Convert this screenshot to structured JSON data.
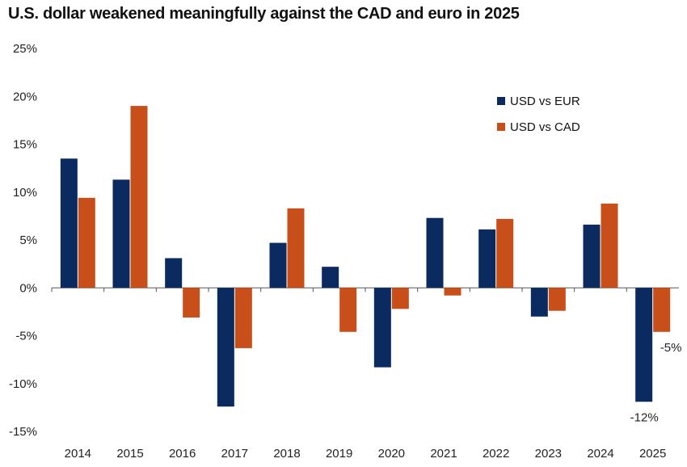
{
  "chart_data": {
    "type": "bar",
    "title": "U.S. dollar weakened meaningfully against the CAD and euro in 2025",
    "xlabel": "",
    "ylabel": "",
    "categories": [
      "2014",
      "2015",
      "2016",
      "2017",
      "2018",
      "2019",
      "2020",
      "2021",
      "2022",
      "2023",
      "2024",
      "2025"
    ],
    "series": [
      {
        "name": "USD vs EUR",
        "color": "#0b2a60",
        "values": [
          13.5,
          11.3,
          3.1,
          -12.4,
          4.7,
          2.2,
          -8.3,
          7.3,
          6.1,
          -3.0,
          6.6,
          -11.9
        ]
      },
      {
        "name": "USD vs CAD",
        "color": "#c94f1a",
        "values": [
          9.4,
          19.0,
          -3.1,
          -6.3,
          8.3,
          -4.6,
          -2.2,
          -0.8,
          7.2,
          -2.4,
          8.8,
          -4.6
        ]
      }
    ],
    "ylim": [
      -15,
      25
    ],
    "yticks": [
      25,
      20,
      15,
      10,
      5,
      0,
      -5,
      -10,
      -15
    ],
    "ytick_format": "percent",
    "grid": false,
    "legend": "top-right",
    "annotations": [
      {
        "category": "2025",
        "series": "USD vs EUR",
        "text": "-12%"
      },
      {
        "category": "2025",
        "series": "USD vs CAD",
        "text": "-5%"
      }
    ]
  }
}
